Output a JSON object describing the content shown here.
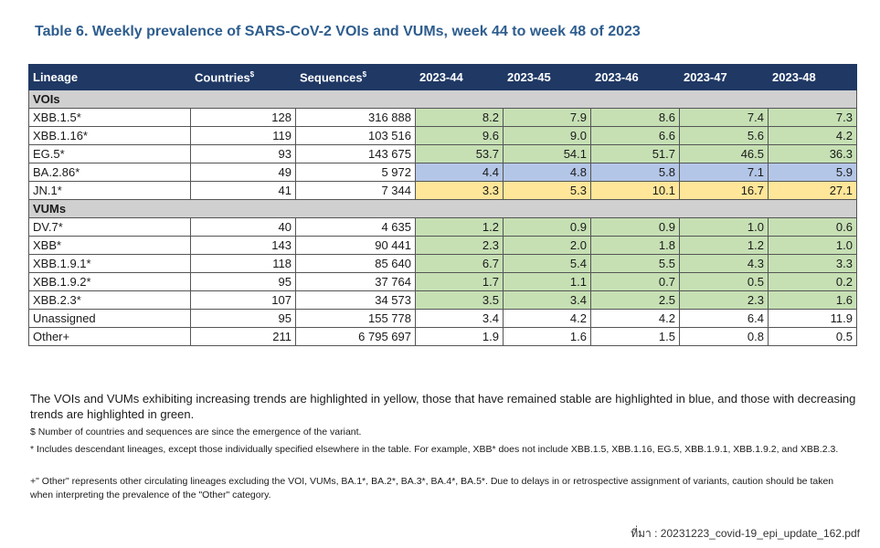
{
  "title": "Table 6. Weekly prevalence of SARS-CoV-2 VOIs and VUMs, week 44 to week 48 of 2023",
  "headers": {
    "lineage": "Lineage",
    "countries": "Countries",
    "countries_mark": "$",
    "sequences": "Sequences",
    "sequences_mark": "$",
    "weeks": [
      "2023-44",
      "2023-45",
      "2023-46",
      "2023-47",
      "2023-48"
    ]
  },
  "highlight_colors": {
    "green": "#c6e0b4",
    "blue": "#b4c6e7",
    "yellow": "#ffe699"
  },
  "groups": [
    {
      "label": "VOIs",
      "rows": [
        {
          "lineage": "XBB.1.5*",
          "countries": "128",
          "sequences": "316 888",
          "values": [
            "8.2",
            "7.9",
            "8.6",
            "7.4",
            "7.3"
          ],
          "highlight": "green"
        },
        {
          "lineage": "XBB.1.16*",
          "countries": "119",
          "sequences": "103 516",
          "values": [
            "9.6",
            "9.0",
            "6.6",
            "5.6",
            "4.2"
          ],
          "highlight": "green"
        },
        {
          "lineage": "EG.5*",
          "countries": "93",
          "sequences": "143 675",
          "values": [
            "53.7",
            "54.1",
            "51.7",
            "46.5",
            "36.3"
          ],
          "highlight": "green"
        },
        {
          "lineage": "BA.2.86*",
          "countries": "49",
          "sequences": "5 972",
          "values": [
            "4.4",
            "4.8",
            "5.8",
            "7.1",
            "5.9"
          ],
          "highlight": "blue"
        },
        {
          "lineage": "JN.1*",
          "countries": "41",
          "sequences": "7 344",
          "values": [
            "3.3",
            "5.3",
            "10.1",
            "16.7",
            "27.1"
          ],
          "highlight": "yellow"
        }
      ]
    },
    {
      "label": "VUMs",
      "rows": [
        {
          "lineage": "DV.7*",
          "countries": "40",
          "sequences": "4 635",
          "values": [
            "1.2",
            "0.9",
            "0.9",
            "1.0",
            "0.6"
          ],
          "highlight": "green"
        },
        {
          "lineage": "XBB*",
          "countries": "143",
          "sequences": "90 441",
          "values": [
            "2.3",
            "2.0",
            "1.8",
            "1.2",
            "1.0"
          ],
          "highlight": "green"
        },
        {
          "lineage": "XBB.1.9.1*",
          "countries": "118",
          "sequences": "85 640",
          "values": [
            "6.7",
            "5.4",
            "5.5",
            "4.3",
            "3.3"
          ],
          "highlight": "green"
        },
        {
          "lineage": "XBB.1.9.2*",
          "countries": "95",
          "sequences": "37 764",
          "values": [
            "1.7",
            "1.1",
            "0.7",
            "0.5",
            "0.2"
          ],
          "highlight": "green"
        },
        {
          "lineage": "XBB.2.3*",
          "countries": "107",
          "sequences": "34 573",
          "values": [
            "3.5",
            "3.4",
            "2.5",
            "2.3",
            "1.6"
          ],
          "highlight": "green"
        },
        {
          "lineage": "Unassigned",
          "countries": "95",
          "sequences": "155 778",
          "values": [
            "3.4",
            "4.2",
            "4.2",
            "6.4",
            "11.9"
          ],
          "highlight": "white"
        },
        {
          "lineage": "Other+",
          "countries": "211",
          "sequences": "6 795 697",
          "values": [
            "1.9",
            "1.6",
            "1.5",
            "0.8",
            "0.5"
          ],
          "highlight": "white"
        }
      ]
    }
  ],
  "note": "The VOIs and VUMs exhibiting increasing trends are highlighted in yellow, those that have remained stable are highlighted in blue, and those with decreasing trends are highlighted in green.",
  "footnotes": [
    "$ Number of countries and sequences are since the emergence of the variant.",
    "* Includes descendant lineages, except those individually specified elsewhere in the table. For example, XBB* does not include XBB.1.5, XBB.1.16, EG.5, XBB.1.9.1, XBB.1.9.2, and XBB.2.3.",
    "+\" Other\" represents other circulating lineages excluding the VOI, VUMs, BA.1*, BA.2*, BA.3*, BA.4*, BA.5*. Due to delays in or retrospective assignment of variants, caution should be taken when interpreting the prevalence of the \"Other\" category."
  ],
  "source": "ที่มา : 20231223_covid-19_epi_update_162.pdf"
}
